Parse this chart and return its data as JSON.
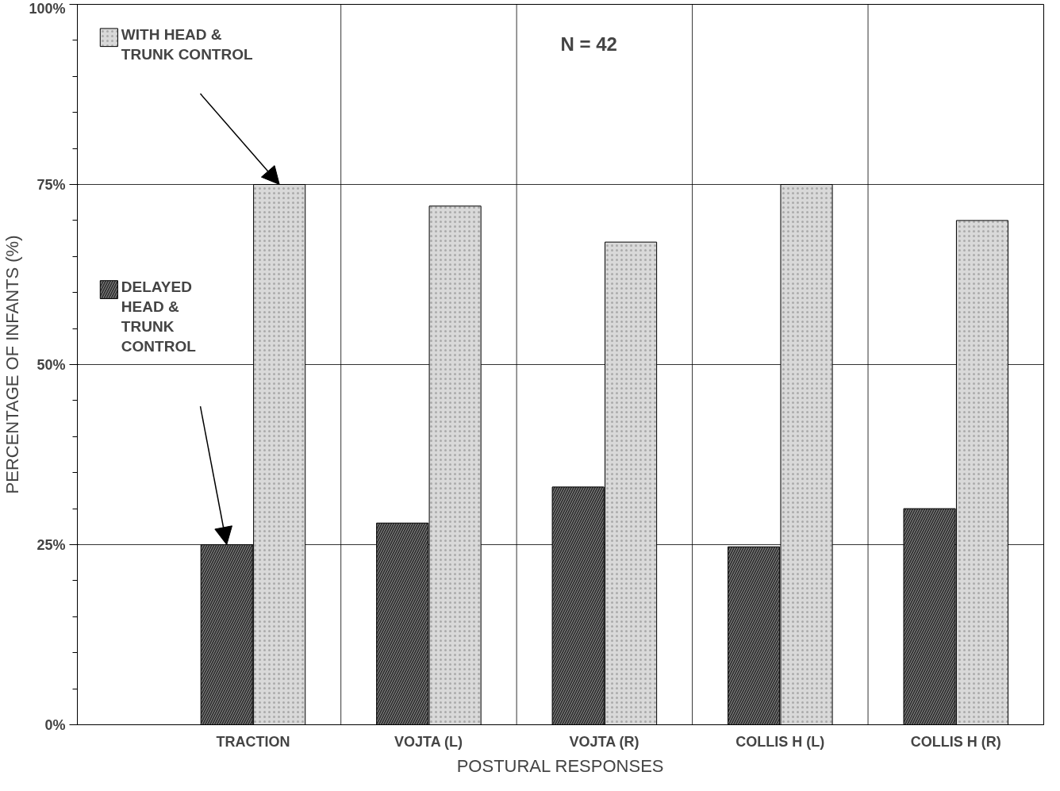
{
  "chart_data": {
    "type": "bar",
    "xlabel": "POSTURAL RESPONSES",
    "ylabel": "PERCENTAGE OF INFANTS (%)",
    "categories": [
      "TRACTION",
      "VOJTA (L)",
      "VOJTA (R)",
      "COLLIS H (L)",
      "COLLIS H (R)"
    ],
    "series": [
      {
        "name": "DELAYED\nHEAD &\nTRUNK\nCONTROL",
        "color": "#333333",
        "values": [
          25,
          28,
          33,
          24.7,
          30
        ]
      },
      {
        "name": "WITH HEAD &\nTRUNK CONTROL",
        "color": "#d9d9d9",
        "values": [
          75,
          72,
          67,
          75,
          70
        ]
      }
    ],
    "ylim": [
      0,
      100
    ],
    "yticks": [
      {
        "value": 0,
        "label": "0%"
      },
      {
        "value": 25,
        "label": "25%"
      },
      {
        "value": 50,
        "label": "50%"
      },
      {
        "value": 75,
        "label": "75%"
      },
      {
        "value": 100,
        "label": "100%"
      }
    ],
    "annotations": [
      "N = 42"
    ],
    "grid": true,
    "legend": "top left"
  }
}
